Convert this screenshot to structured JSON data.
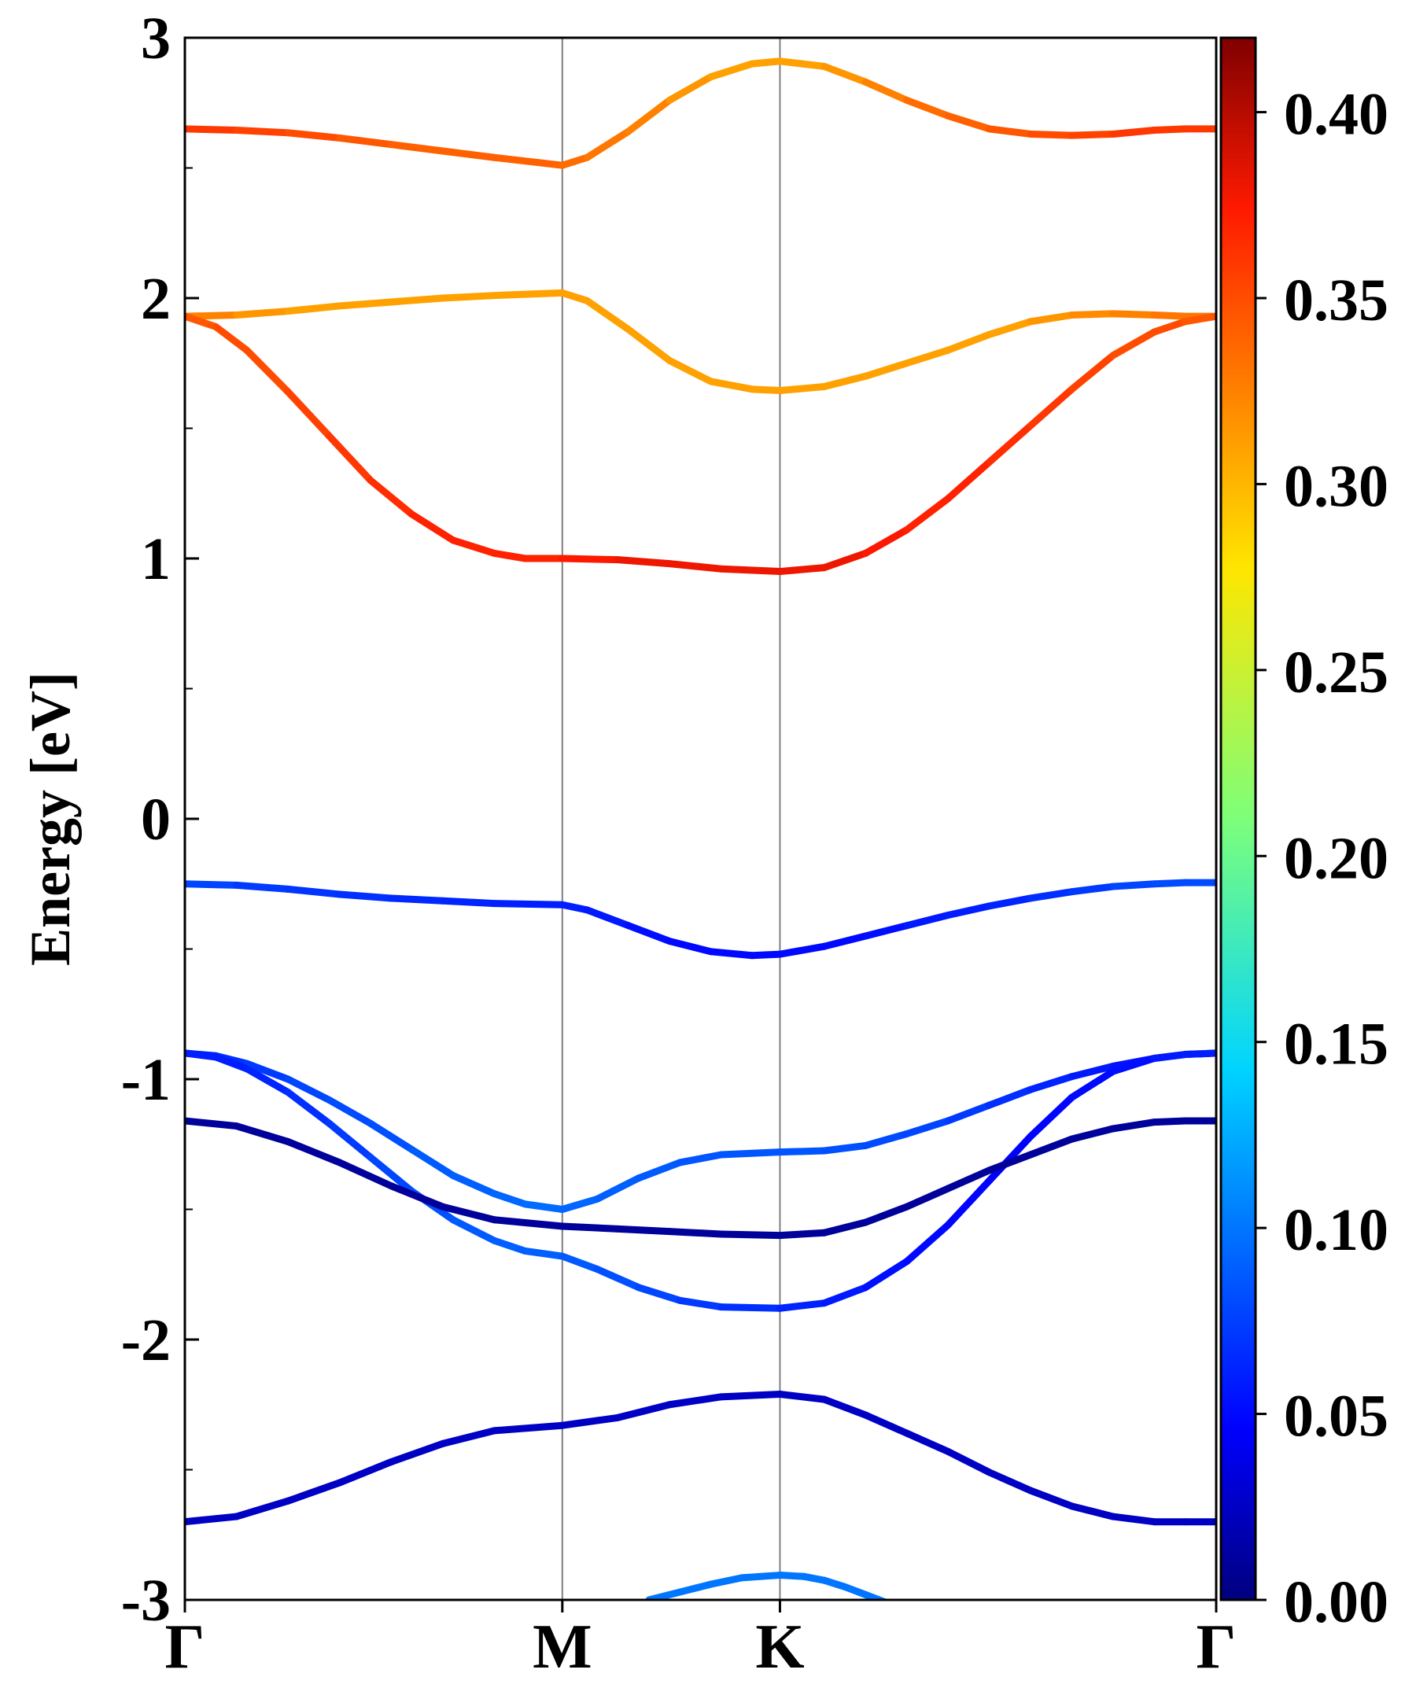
{
  "chart_data": {
    "type": "line",
    "title": "",
    "xlabel": "",
    "ylabel": "Energy [eV]",
    "ylim": [
      -3,
      3
    ],
    "y_ticks": [
      "-3",
      "-2",
      "-1",
      "0",
      "1",
      "2",
      "3"
    ],
    "x_ticks": [
      "Γ",
      "M",
      "K",
      "Γ"
    ],
    "x_tick_positions": [
      0,
      0.366,
      0.577,
      1
    ],
    "high_symmetry_lines": [
      "M",
      "K"
    ],
    "grid": false,
    "colorbar": {
      "min": 0.0,
      "max": 0.42,
      "colormap": "jet",
      "tick_labels": [
        "0.00",
        "0.05",
        "0.10",
        "0.15",
        "0.20",
        "0.25",
        "0.30",
        "0.35",
        "0.40"
      ],
      "tick_values": [
        0.0,
        0.05,
        0.1,
        0.15,
        0.2,
        0.25,
        0.3,
        0.35,
        0.4
      ]
    },
    "series": [
      {
        "x": [
          0,
          0.05,
          0.1,
          0.15,
          0.2,
          0.25,
          0.3,
          0.366,
          0.39,
          0.43,
          0.47,
          0.51,
          0.55,
          0.577,
          0.62,
          0.66,
          0.7,
          0.74,
          0.78,
          0.82,
          0.86,
          0.9,
          0.94,
          0.97,
          1.0
        ],
        "y": [
          2.65,
          2.645,
          2.635,
          2.615,
          2.59,
          2.565,
          2.54,
          2.51,
          2.54,
          2.64,
          2.76,
          2.85,
          2.9,
          2.91,
          2.89,
          2.83,
          2.76,
          2.7,
          2.65,
          2.63,
          2.625,
          2.63,
          2.645,
          2.65,
          2.65
        ],
        "weight": [
          0.36,
          0.36,
          0.35,
          0.35,
          0.34,
          0.34,
          0.34,
          0.34,
          0.33,
          0.33,
          0.32,
          0.31,
          0.31,
          0.31,
          0.31,
          0.32,
          0.33,
          0.34,
          0.34,
          0.35,
          0.35,
          0.36,
          0.36,
          0.36,
          0.36
        ]
      },
      {
        "x": [
          0,
          0.05,
          0.1,
          0.15,
          0.2,
          0.25,
          0.3,
          0.366,
          0.39,
          0.43,
          0.47,
          0.51,
          0.55,
          0.577,
          0.62,
          0.66,
          0.7,
          0.74,
          0.78,
          0.82,
          0.86,
          0.9,
          0.94,
          0.97,
          1.0
        ],
        "y": [
          1.93,
          1.935,
          1.95,
          1.97,
          1.985,
          2.0,
          2.01,
          2.02,
          1.99,
          1.88,
          1.76,
          1.68,
          1.65,
          1.645,
          1.66,
          1.7,
          1.75,
          1.8,
          1.86,
          1.91,
          1.935,
          1.94,
          1.935,
          1.93,
          1.93
        ],
        "weight": [
          0.33,
          0.32,
          0.31,
          0.31,
          0.31,
          0.31,
          0.31,
          0.31,
          0.31,
          0.31,
          0.31,
          0.31,
          0.31,
          0.31,
          0.31,
          0.31,
          0.31,
          0.31,
          0.31,
          0.31,
          0.32,
          0.32,
          0.33,
          0.33,
          0.33
        ]
      },
      {
        "x": [
          0,
          0.03,
          0.06,
          0.1,
          0.14,
          0.18,
          0.22,
          0.26,
          0.3,
          0.33,
          0.366,
          0.42,
          0.47,
          0.52,
          0.577,
          0.62,
          0.66,
          0.7,
          0.74,
          0.78,
          0.82,
          0.86,
          0.9,
          0.94,
          0.97,
          1.0
        ],
        "y": [
          1.93,
          1.89,
          1.8,
          1.64,
          1.47,
          1.3,
          1.17,
          1.07,
          1.02,
          1.0,
          1.0,
          0.995,
          0.98,
          0.96,
          0.95,
          0.965,
          1.02,
          1.11,
          1.23,
          1.37,
          1.51,
          1.65,
          1.78,
          1.87,
          1.91,
          1.93
        ],
        "weight": [
          0.34,
          0.35,
          0.35,
          0.35,
          0.36,
          0.36,
          0.37,
          0.37,
          0.37,
          0.37,
          0.37,
          0.38,
          0.38,
          0.38,
          0.38,
          0.38,
          0.38,
          0.37,
          0.37,
          0.37,
          0.36,
          0.36,
          0.35,
          0.35,
          0.35,
          0.34
        ]
      },
      {
        "x": [
          0,
          0.05,
          0.1,
          0.15,
          0.2,
          0.25,
          0.3,
          0.366,
          0.39,
          0.43,
          0.47,
          0.51,
          0.55,
          0.577,
          0.62,
          0.66,
          0.7,
          0.74,
          0.78,
          0.82,
          0.86,
          0.9,
          0.94,
          0.97,
          1.0
        ],
        "y": [
          -0.25,
          -0.255,
          -0.27,
          -0.29,
          -0.305,
          -0.315,
          -0.325,
          -0.33,
          -0.35,
          -0.41,
          -0.47,
          -0.51,
          -0.525,
          -0.52,
          -0.49,
          -0.45,
          -0.41,
          -0.37,
          -0.335,
          -0.305,
          -0.28,
          -0.26,
          -0.25,
          -0.245,
          -0.245
        ],
        "weight": [
          0.08,
          0.075,
          0.07,
          0.07,
          0.065,
          0.065,
          0.06,
          0.06,
          0.06,
          0.055,
          0.05,
          0.05,
          0.05,
          0.05,
          0.05,
          0.05,
          0.055,
          0.06,
          0.06,
          0.065,
          0.07,
          0.075,
          0.08,
          0.08,
          0.08
        ]
      },
      {
        "x": [
          0,
          0.03,
          0.06,
          0.1,
          0.14,
          0.18,
          0.22,
          0.26,
          0.3,
          0.33,
          0.366,
          0.4,
          0.44,
          0.48,
          0.52,
          0.577,
          0.62,
          0.66,
          0.7,
          0.74,
          0.78,
          0.82,
          0.86,
          0.9,
          0.94,
          0.97,
          1.0
        ],
        "y": [
          -0.9,
          -0.91,
          -0.94,
          -1.0,
          -1.08,
          -1.17,
          -1.27,
          -1.37,
          -1.44,
          -1.48,
          -1.5,
          -1.46,
          -1.38,
          -1.32,
          -1.29,
          -1.28,
          -1.275,
          -1.255,
          -1.21,
          -1.16,
          -1.1,
          -1.04,
          -0.99,
          -0.95,
          -0.92,
          -0.905,
          -0.9
        ],
        "weight": [
          0.06,
          0.065,
          0.07,
          0.075,
          0.08,
          0.08,
          0.085,
          0.09,
          0.09,
          0.095,
          0.095,
          0.09,
          0.09,
          0.085,
          0.085,
          0.085,
          0.085,
          0.08,
          0.08,
          0.075,
          0.07,
          0.065,
          0.06,
          0.055,
          0.055,
          0.055,
          0.06
        ]
      },
      {
        "x": [
          0,
          0.03,
          0.06,
          0.1,
          0.14,
          0.18,
          0.22,
          0.26,
          0.3,
          0.33,
          0.366,
          0.4,
          0.44,
          0.48,
          0.52,
          0.577,
          0.62,
          0.66,
          0.7,
          0.74,
          0.78,
          0.82,
          0.86,
          0.9,
          0.94,
          0.97,
          1.0
        ],
        "y": [
          -0.9,
          -0.915,
          -0.96,
          -1.05,
          -1.17,
          -1.3,
          -1.43,
          -1.54,
          -1.62,
          -1.66,
          -1.68,
          -1.73,
          -1.8,
          -1.85,
          -1.875,
          -1.88,
          -1.86,
          -1.8,
          -1.7,
          -1.56,
          -1.39,
          -1.22,
          -1.07,
          -0.97,
          -0.92,
          -0.905,
          -0.9
        ],
        "weight": [
          0.06,
          0.06,
          0.06,
          0.065,
          0.07,
          0.075,
          0.08,
          0.085,
          0.09,
          0.09,
          0.09,
          0.085,
          0.08,
          0.075,
          0.07,
          0.065,
          0.06,
          0.055,
          0.05,
          0.05,
          0.045,
          0.045,
          0.05,
          0.05,
          0.055,
          0.06,
          0.06
        ]
      },
      {
        "x": [
          0,
          0.05,
          0.1,
          0.15,
          0.2,
          0.25,
          0.3,
          0.366,
          0.42,
          0.47,
          0.52,
          0.577,
          0.62,
          0.66,
          0.7,
          0.74,
          0.78,
          0.82,
          0.86,
          0.9,
          0.94,
          0.97,
          1.0
        ],
        "y": [
          -1.16,
          -1.18,
          -1.24,
          -1.32,
          -1.41,
          -1.49,
          -1.54,
          -1.565,
          -1.575,
          -1.585,
          -1.595,
          -1.6,
          -1.59,
          -1.55,
          -1.49,
          -1.42,
          -1.35,
          -1.29,
          -1.23,
          -1.19,
          -1.165,
          -1.16,
          -1.16
        ],
        "weight": [
          0.01,
          0.01,
          0.01,
          0.01,
          0.01,
          0.01,
          0.01,
          0.01,
          0.01,
          0.01,
          0.01,
          0.01,
          0.01,
          0.01,
          0.01,
          0.01,
          0.01,
          0.01,
          0.01,
          0.01,
          0.01,
          0.01,
          0.01
        ]
      },
      {
        "x": [
          0,
          0.05,
          0.1,
          0.15,
          0.2,
          0.25,
          0.3,
          0.366,
          0.42,
          0.47,
          0.52,
          0.577,
          0.62,
          0.66,
          0.7,
          0.74,
          0.78,
          0.82,
          0.86,
          0.9,
          0.94,
          0.97,
          1.0
        ],
        "y": [
          -2.7,
          -2.68,
          -2.62,
          -2.55,
          -2.47,
          -2.4,
          -2.35,
          -2.33,
          -2.3,
          -2.25,
          -2.22,
          -2.21,
          -2.23,
          -2.29,
          -2.36,
          -2.43,
          -2.51,
          -2.58,
          -2.64,
          -2.68,
          -2.7,
          -2.7,
          -2.7
        ],
        "weight": [
          0.025,
          0.025,
          0.025,
          0.025,
          0.025,
          0.025,
          0.025,
          0.025,
          0.025,
          0.025,
          0.025,
          0.025,
          0.025,
          0.025,
          0.025,
          0.025,
          0.025,
          0.025,
          0.025,
          0.025,
          0.025,
          0.025,
          0.025
        ]
      },
      {
        "x": [
          0.45,
          0.48,
          0.51,
          0.54,
          0.577,
          0.6,
          0.62,
          0.64,
          0.66,
          0.68
        ],
        "y": [
          -3.0,
          -2.97,
          -2.94,
          -2.915,
          -2.905,
          -2.91,
          -2.925,
          -2.95,
          -2.98,
          -3.01
        ],
        "weight": [
          0.1,
          0.1,
          0.1,
          0.1,
          0.1,
          0.1,
          0.1,
          0.1,
          0.1,
          0.1
        ]
      }
    ]
  }
}
